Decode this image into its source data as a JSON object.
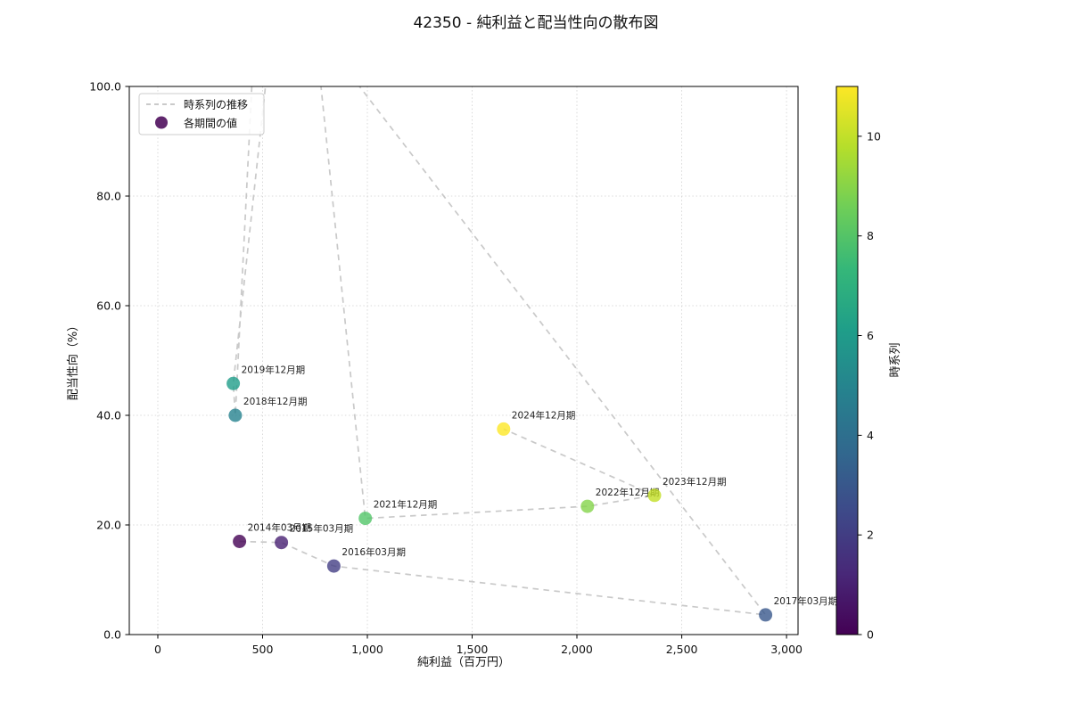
{
  "title": "42350 - 純利益と配当性向の散布図",
  "chart_data": {
    "type": "scatter",
    "title": "42350 - 純利益と配当性向の散布図",
    "xlabel": "純利益（百万円）",
    "ylabel": "配当性向（%）",
    "xlim": [
      -136,
      3055
    ],
    "ylim": [
      0,
      100
    ],
    "x_ticks": [
      0,
      500,
      1000,
      1500,
      2000,
      2500,
      3000
    ],
    "x_tick_labels": [
      "0",
      "500",
      "1,000",
      "1,500",
      "2,000",
      "2,500",
      "3,000"
    ],
    "y_ticks": [
      0,
      20,
      40,
      60,
      80,
      100
    ],
    "y_tick_labels": [
      "0.0",
      "20.0",
      "40.0",
      "60.0",
      "80.0",
      "100.0"
    ],
    "grid": true,
    "legend": {
      "position": "upper left",
      "items": [
        {
          "label": "時系列の推移",
          "type": "dashed-line",
          "color": "#b9b9b9"
        },
        {
          "label": "各期間の値",
          "type": "dot",
          "color": "#440154"
        }
      ]
    },
    "points": [
      {
        "label": "2014年03月期",
        "x": 390,
        "y": 17.0,
        "series_index": 0,
        "color": "#440154"
      },
      {
        "label": "2015年03月期",
        "x": 590,
        "y": 16.8,
        "series_index": 1,
        "color": "#482173"
      },
      {
        "label": "2016年03月期",
        "x": 840,
        "y": 12.5,
        "series_index": 2,
        "color": "#433e85"
      },
      {
        "label": "2017年03月期",
        "x": 2900,
        "y": 3.6,
        "series_index": 3,
        "color": "#38588c"
      },
      {
        "label": "2018年12月期",
        "x": 370,
        "y": 40.0,
        "series_index": 5,
        "color": "#26828e"
      },
      {
        "label": "2019年12月期",
        "x": 360,
        "y": 45.8,
        "series_index": 6,
        "color": "#1f9e89"
      },
      {
        "label": "2021年12月期",
        "x": 990,
        "y": 21.2,
        "series_index": 8,
        "color": "#52c569"
      },
      {
        "label": "2022年12月期",
        "x": 2050,
        "y": 23.4,
        "series_index": 9,
        "color": "#84d44b"
      },
      {
        "label": "2023年12月期",
        "x": 2370,
        "y": 25.4,
        "series_index": 10,
        "color": "#c2df23"
      },
      {
        "label": "2024年12月期",
        "x": 1650,
        "y": 37.5,
        "series_index": 11,
        "color": "#fde725"
      }
    ],
    "line_path": [
      [
        390,
        17.0
      ],
      [
        590,
        16.8
      ],
      [
        840,
        12.5
      ],
      [
        2900,
        3.6
      ],
      [
        480,
        124
      ],
      [
        370,
        40.0
      ],
      [
        360,
        45.8
      ],
      [
        650,
        148
      ],
      [
        990,
        21.2
      ],
      [
        2050,
        23.4
      ],
      [
        2370,
        25.4
      ],
      [
        1650,
        37.5
      ]
    ],
    "colorbar": {
      "label": "時系列",
      "min": 0,
      "max": 11,
      "ticks": [
        0,
        2,
        4,
        6,
        8,
        10
      ],
      "colormap": "viridis",
      "stops": [
        "#440154",
        "#482878",
        "#3e4989",
        "#31688e",
        "#26828e",
        "#1f9e89",
        "#35b779",
        "#6ece58",
        "#b5de2b",
        "#fde725"
      ]
    }
  }
}
